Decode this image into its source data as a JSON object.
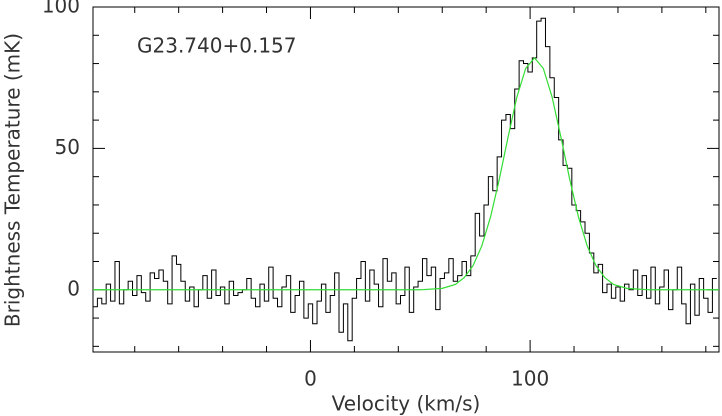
{
  "chart_data": {
    "type": "step",
    "annotation": "G23.740+0.157",
    "xlabel": "Velocity (km/s)",
    "ylabel": "Brightness Temperature (mK)",
    "xlim": [
      -99,
      186
    ],
    "ylim": [
      -22,
      100
    ],
    "xticks": [
      0,
      100
    ],
    "yticks": [
      0,
      50,
      100
    ],
    "xminorticks": [
      -80,
      -60,
      -40,
      -20,
      20,
      40,
      60,
      80,
      120,
      140,
      160,
      180
    ],
    "yminorticks": [
      -20,
      -10,
      10,
      20,
      30,
      40,
      60,
      70,
      80,
      90
    ],
    "series": [
      {
        "color": "#000000",
        "x": [
          -98,
          -96,
          -94,
          -92,
          -90,
          -88,
          -86,
          -84,
          -82,
          -80,
          -78,
          -76,
          -74,
          -72,
          -70,
          -68,
          -66,
          -64,
          -62,
          -60,
          -58,
          -56,
          -54,
          -52,
          -50,
          -48,
          -46,
          -44,
          -42,
          -40,
          -38,
          -36,
          -34,
          -32,
          -30,
          -28,
          -26,
          -24,
          -22,
          -20,
          -18,
          -16,
          -14,
          -12,
          -10,
          -8,
          -6,
          -4,
          -2,
          0,
          2,
          4,
          6,
          8,
          10,
          12,
          14,
          16,
          18,
          20,
          22,
          24,
          26,
          28,
          30,
          32,
          34,
          36,
          38,
          40,
          42,
          44,
          46,
          48,
          50,
          52,
          54,
          56,
          58,
          60,
          62,
          64,
          66,
          68,
          70,
          72,
          74,
          76,
          78,
          80,
          82,
          84,
          86,
          88,
          90,
          92,
          94,
          96,
          98,
          100,
          102,
          104,
          106,
          108,
          110,
          112,
          114,
          116,
          118,
          120,
          122,
          124,
          126,
          128,
          130,
          132,
          134,
          136,
          138,
          140,
          142,
          144,
          146,
          148,
          150,
          152,
          154,
          156,
          158,
          160,
          162,
          164,
          166,
          168,
          170,
          172,
          174,
          176,
          178,
          180,
          182,
          184
        ],
        "values": [
          -6,
          -3,
          -5,
          2,
          -4,
          10,
          -5,
          0,
          3,
          -2,
          5,
          -1,
          -4,
          6,
          4,
          7,
          3,
          -5,
          12,
          9,
          3,
          -4,
          1,
          -6,
          0,
          5,
          -3,
          7,
          -2,
          1,
          -5,
          3,
          -2,
          -1,
          0,
          4,
          -3,
          -6,
          2,
          -4,
          8,
          -3,
          -6,
          1,
          5,
          -8,
          -2,
          3,
          -10,
          -5,
          -12,
          -4,
          2,
          -8,
          -2,
          6,
          -15,
          -5,
          -18,
          -3,
          4,
          10,
          -4,
          7,
          2,
          -6,
          11,
          3,
          6,
          -5,
          -2,
          8,
          -8,
          1,
          3,
          11,
          5,
          8,
          -7,
          4,
          6,
          11,
          3,
          5,
          10,
          5,
          12,
          27,
          19,
          30,
          40,
          35,
          47,
          60,
          62,
          57,
          71,
          81,
          80,
          77,
          82,
          95,
          96,
          86,
          75,
          68,
          53,
          44,
          43,
          30,
          28,
          24,
          20,
          13,
          6,
          9,
          -1,
          2,
          -3,
          1,
          -4,
          2,
          0,
          7,
          -2,
          5,
          -3,
          8,
          -5,
          1,
          7,
          -7,
          0,
          8,
          -5,
          -12,
          2,
          -9,
          4,
          -3,
          -8,
          4
        ]
      },
      {
        "type": "line",
        "color": "#33dd33",
        "x": [
          -99,
          50,
          60,
          66,
          70,
          74,
          78,
          82,
          86,
          90,
          94,
          98,
          102,
          106,
          110,
          114,
          118,
          122,
          126,
          130,
          134,
          138,
          144,
          154,
          186
        ],
        "values": [
          0,
          0,
          0.5,
          1.9,
          4.3,
          8.5,
          15.5,
          25.8,
          39.2,
          54.1,
          68.2,
          78.3,
          82,
          78.3,
          68.2,
          54.1,
          39.2,
          25.8,
          15.5,
          8.5,
          4.3,
          1.9,
          0.5,
          0,
          0
        ]
      }
    ]
  }
}
